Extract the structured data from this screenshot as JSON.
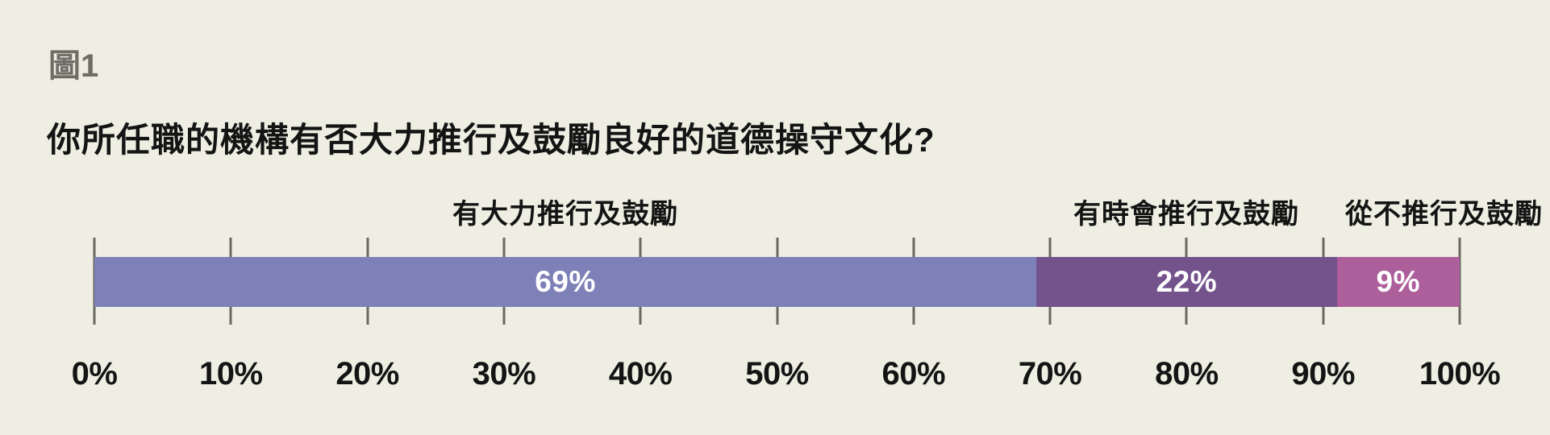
{
  "figure_label": "圖1",
  "question": "你所任職的機構有否大力推行及鼓勵良好的道德操守文化?",
  "colors": {
    "background": "#efeee3",
    "tick": "#6a695f",
    "title_gray": "#6e6d66",
    "text": "#141414",
    "bar_value_text": "#ffffff"
  },
  "chart_data": {
    "type": "bar",
    "orientation": "horizontal-stacked",
    "title": "你所任職的機構有否大力推行及鼓勵良好的道德操守文化?",
    "figure_number": "圖1",
    "segments": [
      {
        "label": "有大力推行及鼓勵",
        "value": 69,
        "display": "69%",
        "color": "#7d81b7"
      },
      {
        "label": "有時會推行及鼓勵",
        "value": 22,
        "display": "22%",
        "color": "#74538d"
      },
      {
        "label": "從不推行及鼓勵",
        "value": 9,
        "display": "9%",
        "color": "#ad5f9b"
      }
    ],
    "axis": {
      "min": 0,
      "max": 100,
      "tick_labels": [
        "0%",
        "10%",
        "20%",
        "30%",
        "40%",
        "50%",
        "60%",
        "70%",
        "80%",
        "90%",
        "100%"
      ]
    },
    "legend_position": "above-segments",
    "grid": false
  }
}
